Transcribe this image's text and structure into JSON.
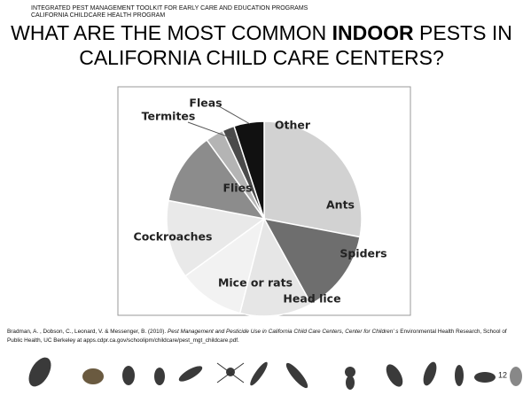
{
  "slide": {
    "header": [
      "INTEGRATED PEST MANAGEMENT TOOLKIT FOR EARLY CARE AND EDUCATION PROGRAMS",
      "CALIFORNIA CHILDCARE HEALTH PROGRAM"
    ],
    "title": {
      "before": "WHAT ARE THE MOST COMMON ",
      "bold": "INDOOR",
      "after": " PESTS IN CALIFORNIA CHILD CARE CENTERS?"
    },
    "citation": {
      "before": "Bradman, A. , Dobson, C., Leonard, V. & Messenger, B. (2010). ",
      "italic": "Pest Management and Pesticide Use in California Child Care Centers, Center for Children' s",
      "after": " Environmental Health Research, School of Public Health, UC Berkeley at apps.cdpr.ca.gov/schoolipm/childcare/pest_mgt_childcare.pdf."
    },
    "page_number": "12"
  },
  "chart_data": {
    "type": "pie",
    "categories": [
      "Ants",
      "Spiders",
      "Head lice",
      "Mice or rats",
      "Cockroaches",
      "Flies",
      "Termites",
      "Fleas",
      "Other"
    ],
    "values": [
      28,
      14,
      12,
      11,
      13,
      12,
      3,
      2,
      5
    ],
    "colors": [
      "#d2d2d2",
      "#6e6e6e",
      "#e6e6e6",
      "#f2f2f2",
      "#e9e9e9",
      "#8c8c8c",
      "#b4b4b4",
      "#4a4a4a",
      "#111111"
    ]
  }
}
